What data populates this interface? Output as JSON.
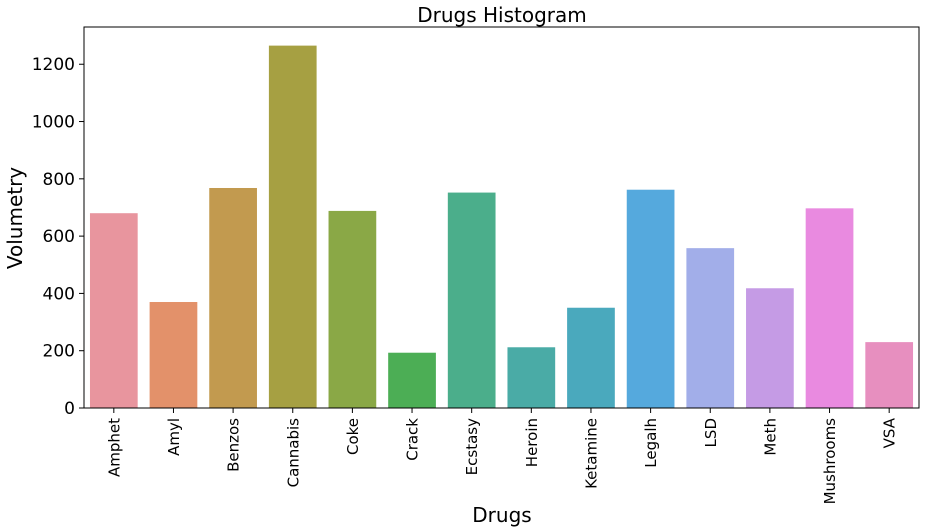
{
  "chart_data": {
    "type": "bar",
    "title": "Drugs Histogram",
    "xlabel": "Drugs",
    "ylabel": "Volumetry",
    "categories": [
      "Amphet",
      "Amyl",
      "Benzos",
      "Cannabis",
      "Coke",
      "Crack",
      "Ecstasy",
      "Heroin",
      "Ketamine",
      "Legalh",
      "LSD",
      "Meth",
      "Mushrooms",
      "VSA"
    ],
    "values": [
      680,
      370,
      768,
      1265,
      688,
      193,
      752,
      212,
      350,
      762,
      558,
      418,
      697,
      230
    ],
    "colors": [
      "#e8959e",
      "#e3916a",
      "#c29a4f",
      "#a6a042",
      "#8aa846",
      "#4cae55",
      "#4bae8b",
      "#4aaba6",
      "#4aa9bd",
      "#55a9dd",
      "#a2aee9",
      "#c59be5",
      "#e98ae0",
      "#e78fbf"
    ],
    "ylim": [
      0,
      1330
    ],
    "yticks": [
      0,
      200,
      400,
      600,
      800,
      1000,
      1200
    ],
    "grid": false,
    "legend": "none"
  }
}
